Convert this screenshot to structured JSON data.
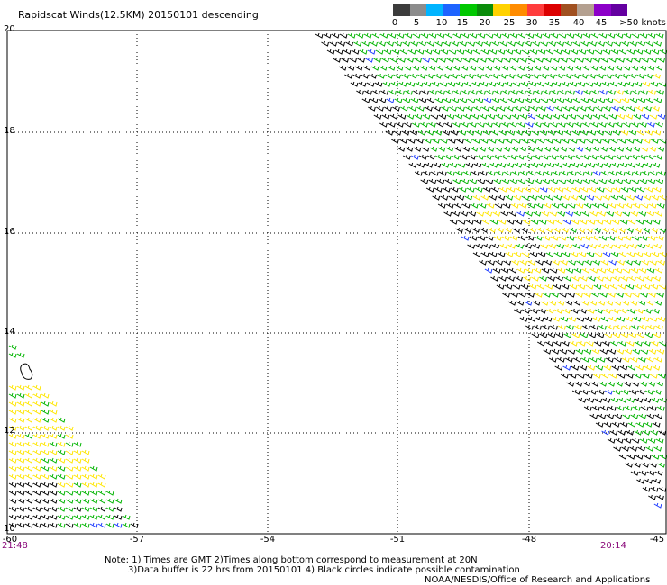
{
  "title": "Rapidscat Winds(12.5KM) 20150101 descending",
  "legend": {
    "labels": [
      "0",
      "5",
      "10",
      "15",
      "20",
      "25",
      "30",
      "35",
      "40",
      "45",
      ">50 knots"
    ],
    "colors": [
      "#3c3c3c",
      "#8c8c8c",
      "#00b4ff",
      "#1e64ff",
      "#00c800",
      "#0a8c0a",
      "#ffd200",
      "#ff8c00",
      "#ff3c3c",
      "#dc0000",
      "#a05020",
      "#b4a090",
      "#8c00c8",
      "#6400a0"
    ]
  },
  "axes": {
    "y_ticks": [
      "20",
      "18",
      "16",
      "14",
      "12",
      "10"
    ],
    "x_ticks": [
      "-60",
      "-57",
      "-54",
      "-51",
      "-48",
      "-45"
    ]
  },
  "times": {
    "left": "21:48",
    "right": "20:14"
  },
  "notes": {
    "line1": "Note: 1) Times are GMT 2)Times along bottom correspond to measurement at 20N",
    "line2": "3)Data buffer is 22 hrs from 20150101 4) Black circles indicate possible contamination",
    "line3": "NOAA/NESDIS/Office of Research and Applications"
  },
  "barb_colors": {
    "black": "#000000",
    "green": "#00b400",
    "yellow": "#ffe600",
    "blue": "#1e3cff"
  }
}
